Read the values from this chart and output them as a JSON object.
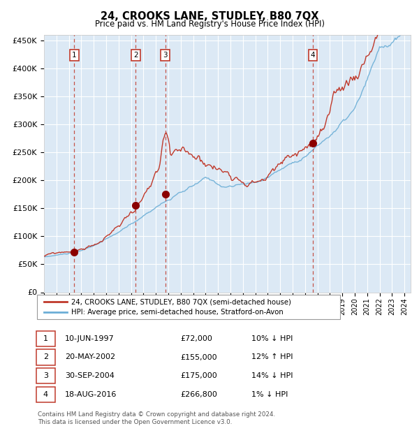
{
  "title": "24, CROOKS LANE, STUDLEY, B80 7QX",
  "subtitle": "Price paid vs. HM Land Registry's House Price Index (HPI)",
  "background_color": "#ffffff",
  "plot_bg_color": "#dce9f5",
  "ylim": [
    0,
    460000
  ],
  "yticks": [
    0,
    50000,
    100000,
    150000,
    200000,
    250000,
    300000,
    350000,
    400000,
    450000
  ],
  "ytick_labels": [
    "£0",
    "£50K",
    "£100K",
    "£150K",
    "£200K",
    "£250K",
    "£300K",
    "£350K",
    "£400K",
    "£450K"
  ],
  "xlim_start": 1995.0,
  "xlim_end": 2024.5,
  "sale_dates": [
    1997.44,
    2002.38,
    2004.75,
    2016.63
  ],
  "sale_prices": [
    72000,
    155000,
    175000,
    266800
  ],
  "sale_labels": [
    "1",
    "2",
    "3",
    "4"
  ],
  "legend_entries": [
    "24, CROOKS LANE, STUDLEY, B80 7QX (semi-detached house)",
    "HPI: Average price, semi-detached house, Stratford-on-Avon"
  ],
  "table_rows": [
    [
      "1",
      "10-JUN-1997",
      "£72,000",
      "10% ↓ HPI"
    ],
    [
      "2",
      "20-MAY-2002",
      "£155,000",
      "12% ↑ HPI"
    ],
    [
      "3",
      "30-SEP-2004",
      "£175,000",
      "14% ↓ HPI"
    ],
    [
      "4",
      "18-AUG-2016",
      "£266,800",
      "1% ↓ HPI"
    ]
  ],
  "footer": "Contains HM Land Registry data © Crown copyright and database right 2024.\nThis data is licensed under the Open Government Licence v3.0.",
  "hpi_color": "#6baed6",
  "price_color": "#c0392b",
  "dot_color": "#8b0000",
  "vline_color": "#c0392b",
  "grid_color": "#ffffff",
  "border_color": "#c0392b"
}
